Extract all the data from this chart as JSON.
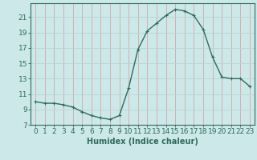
{
  "x": [
    0,
    1,
    2,
    3,
    4,
    5,
    6,
    7,
    8,
    9,
    10,
    11,
    12,
    13,
    14,
    15,
    16,
    17,
    18,
    19,
    20,
    21,
    22,
    23
  ],
  "y": [
    10.0,
    9.8,
    9.8,
    9.6,
    9.3,
    8.7,
    8.2,
    7.9,
    7.7,
    8.2,
    11.8,
    16.8,
    19.2,
    20.2,
    21.2,
    22.0,
    21.8,
    21.2,
    19.4,
    15.8,
    13.2,
    13.0,
    13.0,
    12.0
  ],
  "line_color": "#2e6b5e",
  "marker": "+",
  "marker_color": "#2e6b5e",
  "bg_color": "#cce8e8",
  "grid_color": "#b8d4d4",
  "xlabel": "Humidex (Indice chaleur)",
  "xlim": [
    -0.5,
    23.5
  ],
  "ylim": [
    7,
    22.8
  ],
  "yticks": [
    7,
    9,
    11,
    13,
    15,
    17,
    19,
    21
  ],
  "xticks": [
    0,
    1,
    2,
    3,
    4,
    5,
    6,
    7,
    8,
    9,
    10,
    11,
    12,
    13,
    14,
    15,
    16,
    17,
    18,
    19,
    20,
    21,
    22,
    23
  ],
  "xlabel_fontsize": 7,
  "tick_fontsize": 6.5,
  "line_width": 1.0,
  "marker_size": 3.5
}
